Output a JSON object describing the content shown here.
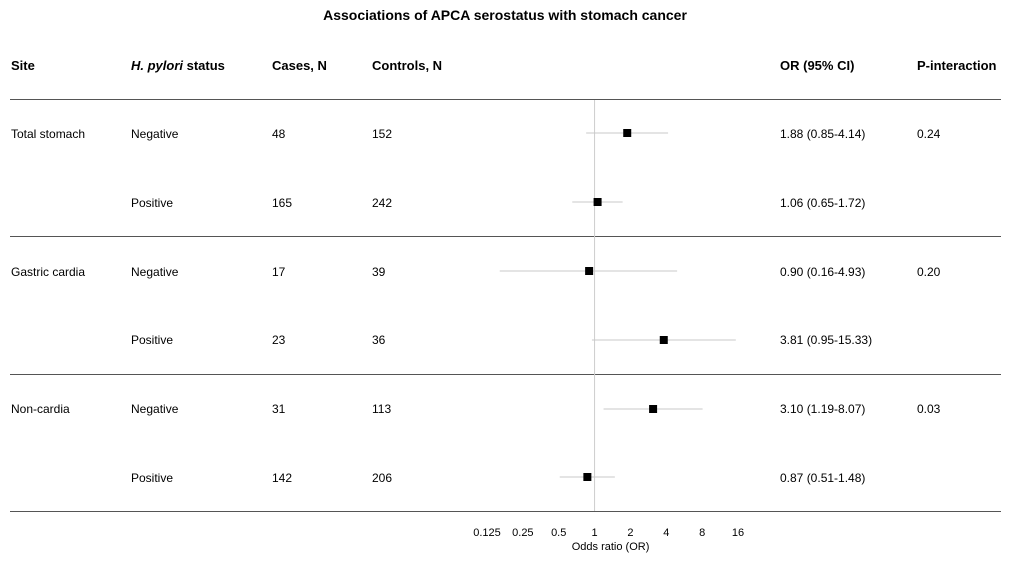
{
  "title": "Associations of APCA serostatus with stomach cancer",
  "headers": {
    "site": "Site",
    "hp_italic": "H. pylori",
    "hp_rest": " status",
    "cases": "Cases, N",
    "controls": "Controls, N",
    "or": "OR (95% CI)",
    "pint": "P-interaction"
  },
  "rows": [
    {
      "site": "Total stomach",
      "hp": "Negative",
      "cases": "48",
      "controls": "152",
      "or_text": "1.88 (0.85-4.14)",
      "pint": "0.24"
    },
    {
      "site": "",
      "hp": "Positive",
      "cases": "165",
      "controls": "242",
      "or_text": "1.06 (0.65-1.72)",
      "pint": ""
    },
    {
      "site": "Gastric cardia",
      "hp": "Negative",
      "cases": "17",
      "controls": "39",
      "or_text": "0.90 (0.16-4.93)",
      "pint": "0.20"
    },
    {
      "site": "",
      "hp": "Positive",
      "cases": "23",
      "controls": "36",
      "or_text": "3.81 (0.95-15.33)",
      "pint": ""
    },
    {
      "site": "Non-cardia",
      "hp": "Negative",
      "cases": "31",
      "controls": "113",
      "or_text": "3.10 (1.19-8.07)",
      "pint": "0.03"
    },
    {
      "site": "",
      "hp": "Positive",
      "cases": "142",
      "controls": "206",
      "or_text": "0.87 (0.51-1.48)",
      "pint": ""
    }
  ],
  "chart_data": {
    "type": "forest",
    "xlabel": "Odds ratio (OR)",
    "x_scale": "log2",
    "xlim": [
      0.125,
      16
    ],
    "xticks": [
      0.125,
      0.25,
      0.5,
      1,
      2,
      4,
      8,
      16
    ],
    "xtick_labels": [
      "0.125",
      "0.25",
      "0.5",
      "1",
      "2",
      "4",
      "8",
      "16"
    ],
    "reference_line": 1,
    "points": [
      {
        "or": 1.88,
        "lo": 0.85,
        "hi": 4.14
      },
      {
        "or": 1.06,
        "lo": 0.65,
        "hi": 1.72
      },
      {
        "or": 0.9,
        "lo": 0.16,
        "hi": 4.93
      },
      {
        "or": 3.81,
        "lo": 0.95,
        "hi": 15.33
      },
      {
        "or": 3.1,
        "lo": 1.19,
        "hi": 8.07
      },
      {
        "or": 0.87,
        "lo": 0.51,
        "hi": 1.48
      }
    ],
    "colors": {
      "marker": "#000000",
      "ci": "#c8c8c8",
      "ref": "#cccccc",
      "rule": "#555555"
    }
  }
}
